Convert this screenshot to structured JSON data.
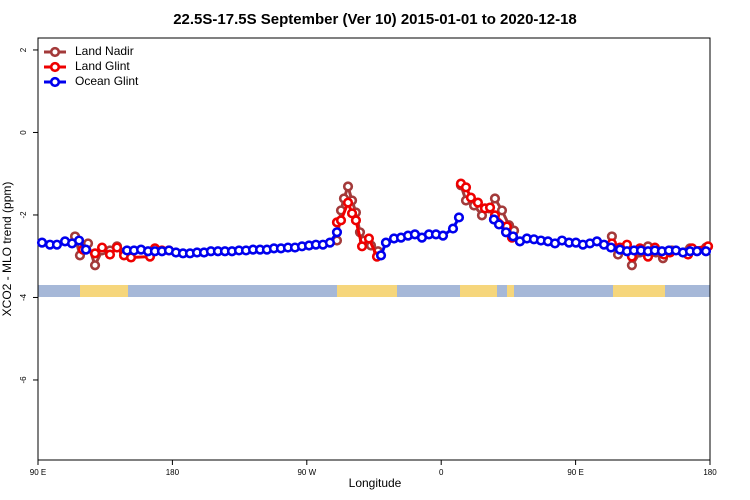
{
  "chart_data": {
    "type": "line",
    "title": "22.5S-17.5S September (Ver 10)   2015-01-01 to 2020-12-18",
    "x_label": "Longitude",
    "y_label": "XCO2 - MLO trend (ppm)",
    "xlim": [
      90,
      540
    ],
    "ylim": [
      -7.94,
      2.29
    ],
    "xticks": [
      {
        "value": 90,
        "label": "90 E"
      },
      {
        "value": 180,
        "label": "180"
      },
      {
        "value": 270,
        "label": "90 W"
      },
      {
        "value": 360,
        "label": "0"
      },
      {
        "value": 450,
        "label": "90 E"
      },
      {
        "value": 540,
        "label": "180"
      }
    ],
    "yticks": [
      -6,
      -4,
      -2,
      0,
      2
    ],
    "legend": "top-left",
    "series": [
      {
        "name": "Land Nadir",
        "color": "#a33a3a",
        "x": [
          114.8,
          118.1,
          123.5,
          128.2,
          132.9,
          138.2,
          142.9,
          147.6,
          null,
          290.2,
          292.9,
          294.9,
          297.6,
          300.3,
          302.9,
          305.6,
          308.3,
          313.0,
          317.7,
          null,
          373.2,
          376.6,
          382.0,
          387.3,
          392.0,
          396.0,
          400.7,
          405.4,
          408.8,
          null,
          474.3,
          478.4,
          483.7,
          487.7,
          493.1,
          498.5,
          503.8,
          508.5,
          514.5,
          523.3,
          526.6,
          537.3
        ],
        "values": [
          -2.52,
          -2.98,
          -2.69,
          -3.22,
          -2.86,
          -2.86,
          -2.76,
          -2.91,
          null,
          -2.62,
          -1.89,
          -1.6,
          -1.31,
          -1.65,
          -1.94,
          -2.42,
          -2.62,
          -2.74,
          -2.88,
          null,
          -1.28,
          -1.65,
          -1.77,
          -2.01,
          -1.84,
          -1.6,
          -1.89,
          -2.25,
          -2.38,
          null,
          -2.52,
          -2.96,
          -2.79,
          -3.22,
          -2.91,
          -2.76,
          -2.91,
          -3.05,
          -2.86,
          -2.91,
          -2.81,
          -2.79
        ]
      },
      {
        "name": "Land Glint",
        "color": "#ee0000",
        "x": [
          120.1,
          128.2,
          132.9,
          138.2,
          142.9,
          147.6,
          152.3,
          165.0,
          168.3,
          173.0,
          177.7,
          null,
          290.2,
          292.9,
          297.6,
          300.3,
          302.9,
          307.0,
          311.6,
          317.0,
          null,
          373.2,
          376.6,
          379.9,
          384.6,
          389.3,
          392.7,
          396.0,
          404.0,
          407.4,
          null,
          474.3,
          479.7,
          484.4,
          487.7,
          493.1,
          498.5,
          503.1,
          509.2,
          513.2,
          525.3,
          528.0,
          538.7
        ],
        "values": [
          -2.84,
          -2.93,
          -2.79,
          -2.96,
          -2.79,
          -2.98,
          -3.03,
          -3.01,
          -2.81,
          -2.86,
          -2.86,
          null,
          -2.18,
          -2.13,
          -1.7,
          -1.96,
          -2.13,
          -2.76,
          -2.57,
          -3.01,
          null,
          -1.24,
          -1.33,
          -1.58,
          -1.7,
          -1.84,
          -1.82,
          -2.01,
          -2.28,
          -2.55,
          null,
          -2.69,
          -2.79,
          -2.72,
          -3.01,
          -2.81,
          -3.01,
          -2.79,
          -2.96,
          -2.91,
          -2.96,
          -2.81,
          -2.76
        ]
      },
      {
        "name": "Ocean Glint",
        "color": "#0000ee",
        "x": [
          92.7,
          98.0,
          102.7,
          108.1,
          112.8,
          117.5,
          122.1,
          null,
          149.6,
          154.3,
          159.0,
          163.7,
          168.3,
          173.0,
          177.7,
          182.4,
          187.1,
          191.8,
          196.5,
          201.2,
          205.8,
          210.5,
          215.2,
          219.9,
          224.6,
          229.3,
          234.0,
          238.7,
          243.3,
          248.0,
          252.7,
          257.4,
          262.1,
          266.8,
          271.5,
          276.1,
          280.8,
          285.5,
          290.2,
          null,
          319.7,
          323.0,
          328.4,
          333.1,
          337.8,
          342.4,
          347.1,
          351.8,
          356.5,
          361.2,
          367.9,
          371.9,
          null,
          395.3,
          398.7,
          403.4,
          408.1,
          412.7,
          417.4,
          422.1,
          426.8,
          431.5,
          436.2,
          440.9,
          445.6,
          450.2,
          454.9,
          459.6,
          464.3,
          469.0,
          473.7,
          479.7,
          484.4,
          489.1,
          493.8,
          498.5,
          503.1,
          507.8,
          512.5,
          517.2,
          521.9,
          526.6,
          531.3,
          537.3
        ],
        "values": [
          -2.67,
          -2.72,
          -2.72,
          -2.64,
          -2.69,
          -2.62,
          -2.84,
          null,
          -2.86,
          -2.86,
          -2.84,
          -2.88,
          -2.88,
          -2.88,
          -2.86,
          -2.91,
          -2.93,
          -2.93,
          -2.91,
          -2.91,
          -2.88,
          -2.88,
          -2.88,
          -2.88,
          -2.86,
          -2.86,
          -2.84,
          -2.84,
          -2.84,
          -2.81,
          -2.81,
          -2.79,
          -2.79,
          -2.76,
          -2.74,
          -2.72,
          -2.72,
          -2.67,
          -2.42,
          null,
          -2.98,
          -2.67,
          -2.57,
          -2.55,
          -2.5,
          -2.47,
          -2.55,
          -2.47,
          -2.47,
          -2.5,
          -2.33,
          -2.06,
          null,
          -2.11,
          -2.23,
          -2.42,
          -2.52,
          -2.64,
          -2.57,
          -2.59,
          -2.62,
          -2.64,
          -2.69,
          -2.62,
          -2.67,
          -2.67,
          -2.72,
          -2.69,
          -2.64,
          -2.72,
          -2.79,
          -2.84,
          -2.88,
          -2.86,
          -2.86,
          -2.88,
          -2.86,
          -2.88,
          -2.86,
          -2.86,
          -2.91,
          -2.88,
          -2.88,
          -2.88
        ]
      }
    ]
  }
}
